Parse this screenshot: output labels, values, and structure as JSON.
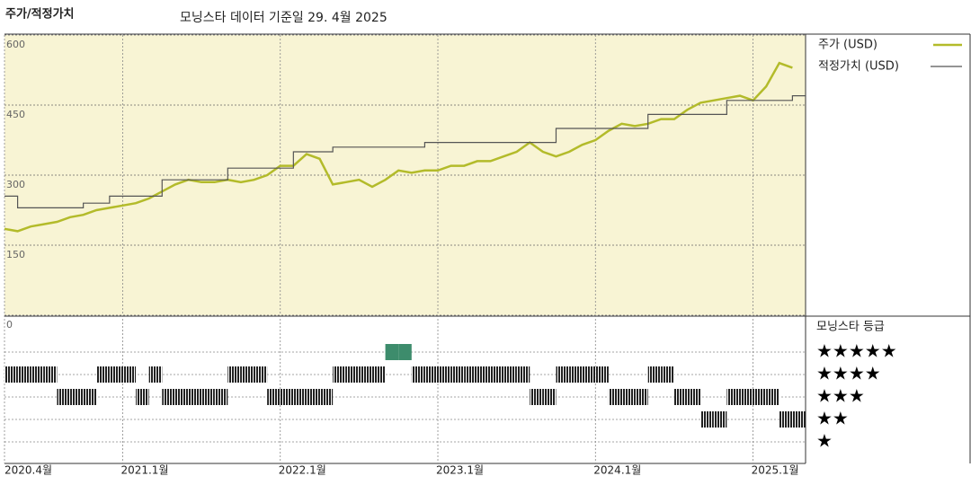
{
  "chart_data": {
    "type": "line",
    "title": "주가/적정가치",
    "subtitle": "모닝스타 데이터 기준일 29. 4월 2025",
    "x": [
      "2020-04",
      "2020-05",
      "2020-06",
      "2020-07",
      "2020-08",
      "2020-09",
      "2020-10",
      "2020-11",
      "2020-12",
      "2021-01",
      "2021-02",
      "2021-03",
      "2021-04",
      "2021-05",
      "2021-06",
      "2021-07",
      "2021-08",
      "2021-09",
      "2021-10",
      "2021-11",
      "2021-12",
      "2022-01",
      "2022-02",
      "2022-03",
      "2022-04",
      "2022-05",
      "2022-06",
      "2022-07",
      "2022-08",
      "2022-09",
      "2022-10",
      "2022-11",
      "2022-12",
      "2023-01",
      "2023-02",
      "2023-03",
      "2023-04",
      "2023-05",
      "2023-06",
      "2023-07",
      "2023-08",
      "2023-09",
      "2023-10",
      "2023-11",
      "2023-12",
      "2024-01",
      "2024-02",
      "2024-03",
      "2024-04",
      "2024-05",
      "2024-06",
      "2024-07",
      "2024-08",
      "2024-09",
      "2024-10",
      "2024-11",
      "2024-12",
      "2025-01",
      "2025-02",
      "2025-03",
      "2025-04"
    ],
    "series": [
      {
        "name": "주가 (USD)",
        "color": "#b3bb2a",
        "width": 2.5,
        "curve": "linear",
        "values": [
          185,
          180,
          190,
          195,
          200,
          210,
          215,
          225,
          230,
          235,
          240,
          250,
          265,
          280,
          290,
          285,
          285,
          290,
          285,
          290,
          300,
          320,
          320,
          345,
          335,
          280,
          285,
          290,
          275,
          290,
          310,
          305,
          310,
          310,
          320,
          320,
          330,
          330,
          340,
          350,
          370,
          350,
          340,
          350,
          365,
          375,
          395,
          410,
          405,
          410,
          420,
          420,
          440,
          455,
          460,
          465,
          470,
          460,
          490,
          540,
          530
        ]
      },
      {
        "name": "적정가치 (USD)",
        "color": "#555555",
        "width": 1.2,
        "curve": "step",
        "values": [
          255,
          230,
          230,
          230,
          230,
          230,
          240,
          240,
          255,
          255,
          255,
          255,
          290,
          290,
          290,
          290,
          290,
          315,
          315,
          315,
          315,
          315,
          350,
          350,
          350,
          360,
          360,
          360,
          360,
          360,
          360,
          360,
          370,
          370,
          370,
          370,
          370,
          370,
          370,
          370,
          370,
          370,
          400,
          400,
          400,
          400,
          400,
          400,
          400,
          430,
          430,
          430,
          430,
          430,
          430,
          460,
          460,
          460,
          460,
          460,
          470
        ]
      }
    ],
    "ylim": [
      0,
      600
    ],
    "yticks": [
      0,
      150,
      300,
      450,
      600
    ],
    "xticks": [
      {
        "value": "2020-04",
        "label": "2020.4월"
      },
      {
        "value": "2021-01",
        "label": "2021.1월"
      },
      {
        "value": "2022-01",
        "label": "2022.1월"
      },
      {
        "value": "2023-01",
        "label": "2023.1월"
      },
      {
        "value": "2024-01",
        "label": "2024.1월"
      },
      {
        "value": "2025-01",
        "label": "2025.1월"
      }
    ],
    "grid": true,
    "background": "#f8f4d4",
    "rating": {
      "title": "모닝스타 등급",
      "color": "#222222",
      "top_color": "#3d8c6c",
      "levels": [
        {
          "value": 5,
          "label": "★★★★★"
        },
        {
          "value": 4,
          "label": "★★★★"
        },
        {
          "value": 3,
          "label": "★★★"
        },
        {
          "value": 2,
          "label": "★★"
        },
        {
          "value": 1,
          "label": "★"
        }
      ],
      "values": [
        4,
        4,
        4,
        4,
        3,
        3,
        3,
        4,
        4,
        4,
        3,
        4,
        3,
        3,
        3,
        3,
        3,
        4,
        4,
        4,
        3,
        3,
        3,
        3,
        3,
        4,
        4,
        4,
        4,
        5,
        5,
        4,
        4,
        4,
        4,
        4,
        4,
        4,
        4,
        4,
        3,
        3,
        4,
        4,
        4,
        4,
        3,
        3,
        3,
        4,
        4,
        3,
        3,
        2,
        2,
        3,
        3,
        3,
        3,
        2,
        2
      ]
    }
  }
}
